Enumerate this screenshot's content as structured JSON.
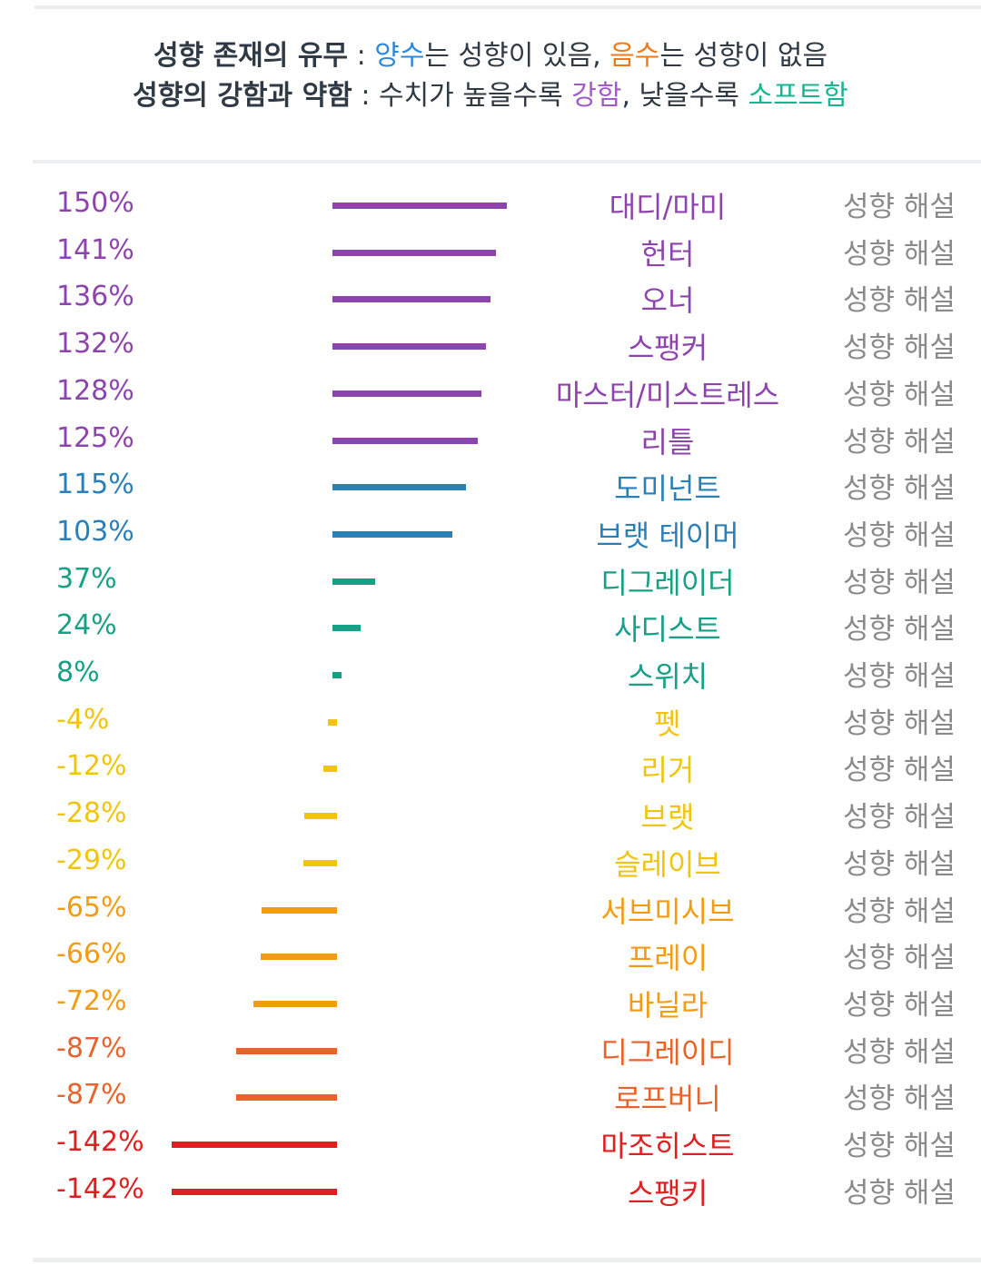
{
  "header": {
    "line1": {
      "label": "성향 존재의 유무",
      "sep": " : ",
      "positive": "양수",
      "mid1": "는 성향이 있음, ",
      "negative": "음수",
      "mid2": "는 성향이 없음"
    },
    "line2": {
      "label": "성향의 강함과 약함",
      "sep": " : ",
      "pre": "수치가 높을수록 ",
      "strong": "강함",
      "mid": ", 낮을수록 ",
      "soft": "소프트함"
    }
  },
  "explain_label": "성향 해설",
  "rows": [
    {
      "name": "대디/마미",
      "value": 150,
      "pct": "150%",
      "color": "#8e44ad"
    },
    {
      "name": "헌터",
      "value": 141,
      "pct": "141%",
      "color": "#8e44ad"
    },
    {
      "name": "오너",
      "value": 136,
      "pct": "136%",
      "color": "#8e44ad"
    },
    {
      "name": "스팽커",
      "value": 132,
      "pct": "132%",
      "color": "#8e44ad"
    },
    {
      "name": "마스터/미스트레스",
      "value": 128,
      "pct": "128%",
      "color": "#8e44ad"
    },
    {
      "name": "리틀",
      "value": 125,
      "pct": "125%",
      "color": "#8e44ad"
    },
    {
      "name": "도미넌트",
      "value": 115,
      "pct": "115%",
      "color": "#2980b9"
    },
    {
      "name": "브랫 테이머",
      "value": 103,
      "pct": "103%",
      "color": "#2980b9"
    },
    {
      "name": "디그레이더",
      "value": 37,
      "pct": "37%",
      "color": "#16a085"
    },
    {
      "name": "사디스트",
      "value": 24,
      "pct": "24%",
      "color": "#16a085"
    },
    {
      "name": "스위치",
      "value": 8,
      "pct": "8%",
      "color": "#16a085"
    },
    {
      "name": "펫",
      "value": -4,
      "pct": "-4%",
      "color": "#f1c40f"
    },
    {
      "name": "리거",
      "value": -12,
      "pct": "-12%",
      "color": "#f1c40f"
    },
    {
      "name": "브랫",
      "value": -28,
      "pct": "-28%",
      "color": "#f1c40f"
    },
    {
      "name": "슬레이브",
      "value": -29,
      "pct": "-29%",
      "color": "#f1c40f"
    },
    {
      "name": "서브미시브",
      "value": -65,
      "pct": "-65%",
      "color": "#f39c12"
    },
    {
      "name": "프레이",
      "value": -66,
      "pct": "-66%",
      "color": "#f39c12"
    },
    {
      "name": "바닐라",
      "value": -72,
      "pct": "-72%",
      "color": "#f39c12"
    },
    {
      "name": "디그레이디",
      "value": -87,
      "pct": "-87%",
      "color": "#e8632a"
    },
    {
      "name": "로프버니",
      "value": -87,
      "pct": "-87%",
      "color": "#e8632a"
    },
    {
      "name": "마조히스트",
      "value": -142,
      "pct": "-142%",
      "color": "#e02020"
    },
    {
      "name": "스팽키",
      "value": -142,
      "pct": "-142%",
      "color": "#e02020"
    }
  ]
}
